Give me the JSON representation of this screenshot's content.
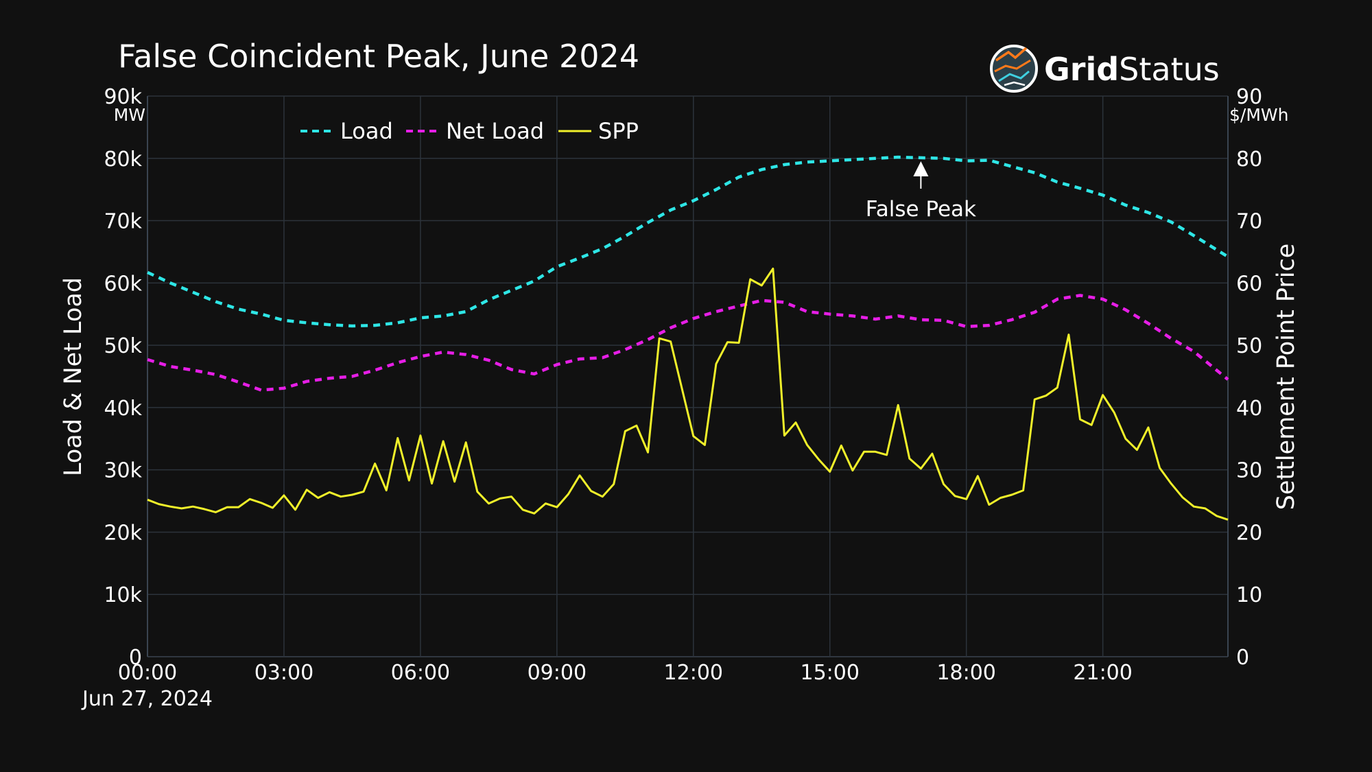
{
  "chart_data": {
    "type": "line",
    "title": "False Coincident Peak, June 2024",
    "x_date_label": "Jun 27, 2024",
    "x_ticks": [
      "00:00",
      "03:00",
      "06:00",
      "09:00",
      "12:00",
      "15:00",
      "18:00",
      "21:00"
    ],
    "x_range_hours": [
      0,
      23.75
    ],
    "y_left": {
      "label": "Load & Net Load",
      "unit": "MW",
      "range": [
        0,
        90000
      ],
      "ticks": [
        "0",
        "10k",
        "20k",
        "30k",
        "40k",
        "50k",
        "60k",
        "70k",
        "80k",
        "90k"
      ]
    },
    "y_right": {
      "label": "Settlement Point Price",
      "unit": "$/MWh",
      "range": [
        0,
        90
      ],
      "ticks": [
        "0",
        "10",
        "20",
        "30",
        "40",
        "50",
        "60",
        "70",
        "80",
        "90"
      ]
    },
    "grid": true,
    "legend_position": "top-left",
    "series": [
      {
        "name": "Load",
        "axis": "left",
        "style": "dash",
        "color": "#2ee6e6",
        "x": [
          0,
          0.5,
          1,
          1.5,
          2,
          2.5,
          3,
          3.5,
          4,
          4.5,
          5,
          5.5,
          6,
          6.5,
          7,
          7.5,
          8,
          8.5,
          9,
          9.5,
          10,
          10.5,
          11,
          11.5,
          12,
          12.5,
          13,
          13.5,
          14,
          14.5,
          15,
          15.5,
          16,
          16.5,
          17,
          17.5,
          18,
          18.5,
          19,
          19.5,
          20,
          20.5,
          21,
          21.5,
          22,
          22.5,
          23,
          23.75
        ],
        "values": [
          61700,
          60000,
          58500,
          57000,
          55800,
          55000,
          54000,
          53600,
          53300,
          53100,
          53200,
          53600,
          54400,
          54700,
          55400,
          57300,
          58800,
          60300,
          62600,
          64000,
          65500,
          67500,
          69700,
          71700,
          73200,
          75000,
          77000,
          78200,
          79000,
          79400,
          79600,
          79800,
          80000,
          80200,
          80100,
          80000,
          79600,
          79700,
          78700,
          77700,
          76200,
          75200,
          74100,
          72500,
          71300,
          69800,
          67600,
          64200
        ]
      },
      {
        "name": "Net Load",
        "axis": "left",
        "style": "dash",
        "color": "#e61ee6",
        "x": [
          0,
          0.5,
          1,
          1.5,
          2,
          2.5,
          3,
          3.5,
          4,
          4.5,
          5,
          5.5,
          6,
          6.5,
          7,
          7.5,
          8,
          8.5,
          9,
          9.5,
          10,
          10.5,
          11,
          11.5,
          12,
          12.5,
          13,
          13.5,
          14,
          14.5,
          15,
          15.5,
          16,
          16.5,
          17,
          17.5,
          18,
          18.5,
          19,
          19.5,
          20,
          20.5,
          21,
          21.5,
          22,
          22.5,
          23,
          23.75
        ],
        "values": [
          47700,
          46600,
          46000,
          45300,
          44100,
          42800,
          43100,
          44200,
          44700,
          45000,
          46000,
          47200,
          48200,
          48900,
          48500,
          47600,
          46100,
          45400,
          46900,
          47800,
          48000,
          49300,
          50900,
          52800,
          54300,
          55400,
          56300,
          57200,
          56900,
          55400,
          55000,
          54700,
          54200,
          54700,
          54100,
          54000,
          53000,
          53200,
          54100,
          55300,
          57400,
          58000,
          57400,
          55700,
          53500,
          51100,
          49000,
          44500
        ]
      },
      {
        "name": "SPP",
        "axis": "right",
        "style": "solid",
        "color": "#f0f02a",
        "x": [
          0,
          0.25,
          0.5,
          0.75,
          1,
          1.25,
          1.5,
          1.75,
          2,
          2.25,
          2.5,
          2.75,
          3,
          3.25,
          3.5,
          3.75,
          4,
          4.25,
          4.5,
          4.75,
          5,
          5.25,
          5.5,
          5.75,
          6,
          6.25,
          6.5,
          6.75,
          7,
          7.25,
          7.5,
          7.75,
          8,
          8.25,
          8.5,
          8.75,
          9,
          9.25,
          9.5,
          9.75,
          10,
          10.25,
          10.5,
          10.75,
          11,
          11.25,
          11.5,
          11.75,
          12,
          12.25,
          12.5,
          12.75,
          13,
          13.25,
          13.5,
          13.75,
          14,
          14.25,
          14.5,
          14.75,
          15,
          15.25,
          15.5,
          15.75,
          16,
          16.25,
          16.5,
          16.75,
          17,
          17.25,
          17.5,
          17.75,
          18,
          18.25,
          18.5,
          18.75,
          19,
          19.25,
          19.5,
          19.75,
          20,
          20.25,
          20.5,
          20.75,
          21,
          21.25,
          21.5,
          21.75,
          22,
          22.25,
          22.5,
          22.75,
          23,
          23.25,
          23.5,
          23.75
        ],
        "values": [
          25.2,
          24.5,
          24.1,
          23.8,
          24.1,
          23.7,
          23.2,
          24.0,
          24.0,
          25.3,
          24.7,
          23.9,
          25.9,
          23.6,
          26.8,
          25.5,
          26.4,
          25.7,
          26.0,
          26.5,
          31.0,
          26.7,
          35.1,
          28.3,
          35.5,
          27.8,
          34.6,
          28.1,
          34.4,
          26.5,
          24.6,
          25.4,
          25.7,
          23.6,
          23.0,
          24.6,
          24.0,
          26.1,
          29.1,
          26.6,
          25.7,
          27.7,
          36.2,
          37.1,
          32.8,
          51.1,
          50.6,
          43.0,
          35.4,
          34.0,
          47.0,
          50.5,
          50.4,
          60.6,
          59.6,
          62.3,
          35.5,
          37.6,
          34.0,
          31.7,
          29.7,
          33.9,
          29.9,
          32.9,
          32.9,
          32.4,
          40.4,
          31.8,
          30.2,
          32.6,
          27.7,
          25.8,
          25.3,
          29.0,
          24.4,
          25.5,
          26.0,
          26.7,
          41.3,
          41.9,
          43.2,
          51.7,
          38.1,
          37.2,
          42.0,
          39.2,
          35.0,
          33.2,
          36.8,
          30.3,
          27.8,
          25.6,
          24.1,
          23.8,
          22.6,
          22.0
        ]
      }
    ],
    "annotations": [
      {
        "text": "False Peak",
        "x": 17,
        "y": 80200,
        "axis": "left"
      }
    ]
  },
  "brand": {
    "name_bold": "Grid",
    "name_regular": "Status"
  }
}
